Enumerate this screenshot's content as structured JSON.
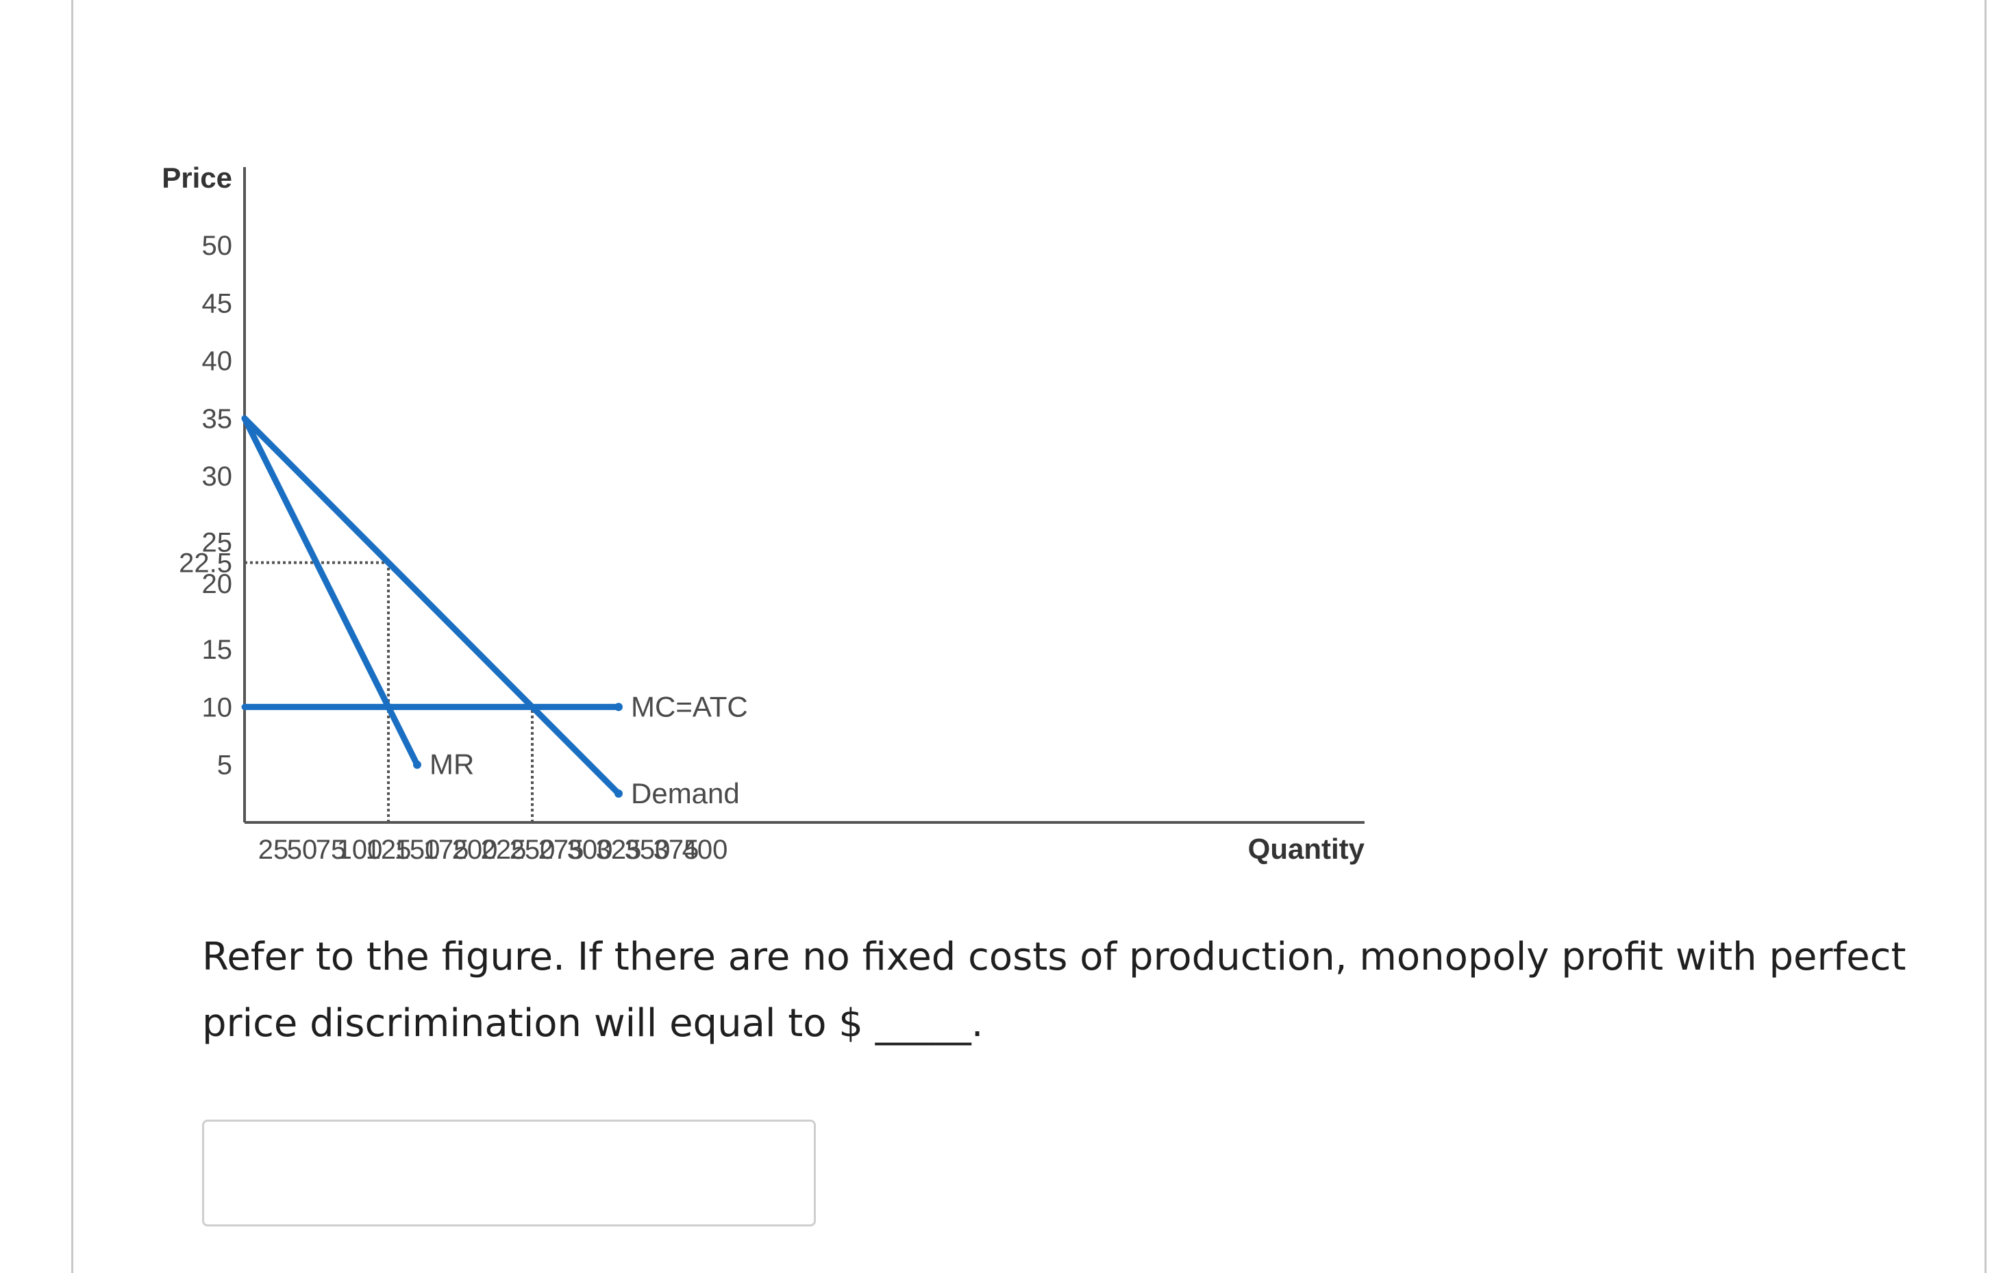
{
  "question": {
    "text": "Refer to the figure. If there are no fixed costs of production, monopoly profit with perfect price discrimination will equal to $ _____."
  },
  "answer": {
    "value": "",
    "placeholder": ""
  },
  "chart_data": {
    "type": "line",
    "title": "",
    "xlabel": "Quantity",
    "ylabel": "Price",
    "xlim": [
      0,
      400
    ],
    "ylim": [
      0,
      50
    ],
    "x_ticks": [
      25,
      50,
      75,
      100,
      125,
      150,
      175,
      200,
      225,
      250,
      275,
      300,
      325,
      350,
      375,
      400
    ],
    "y_ticks": [
      5,
      10,
      15,
      20,
      22.5,
      25,
      30,
      35,
      40,
      45,
      50
    ],
    "series": [
      {
        "name": "Demand",
        "x": [
          0,
          250,
          325
        ],
        "y": [
          35,
          10,
          2.5
        ]
      },
      {
        "name": "MR",
        "x": [
          0,
          125,
          150
        ],
        "y": [
          35,
          10,
          5
        ]
      },
      {
        "name": "MC=ATC",
        "x": [
          0,
          325
        ],
        "y": [
          10,
          10
        ]
      }
    ],
    "reference_lines": [
      {
        "type": "horizontal",
        "y": 22.5,
        "x_from": 0,
        "x_to": 125,
        "style": "dotted"
      },
      {
        "type": "vertical",
        "x": 125,
        "y_from": 0,
        "y_to": 22.5,
        "style": "dotted"
      },
      {
        "type": "vertical",
        "x": 250,
        "y_from": 0,
        "y_to": 10,
        "style": "dotted"
      }
    ],
    "grid": false,
    "colors": {
      "curves": "#1a6fc2",
      "axis": "#555555",
      "reference": "#555555"
    }
  }
}
